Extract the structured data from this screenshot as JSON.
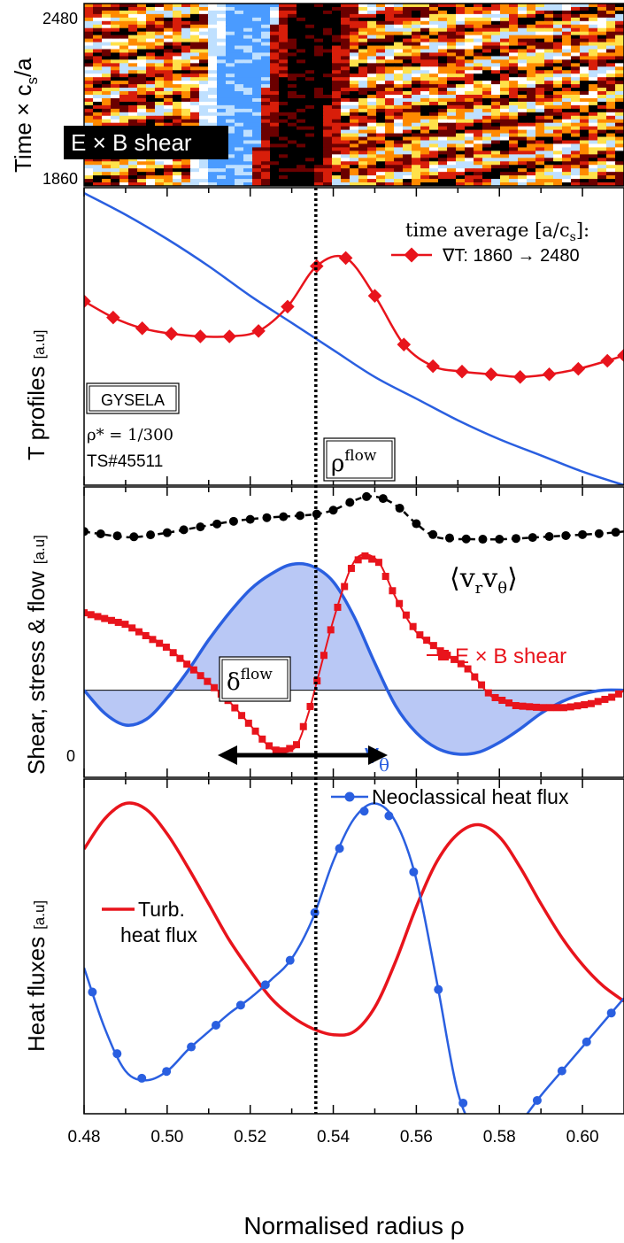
{
  "colors": {
    "red": "#e8141c",
    "blue": "#2a5fe0",
    "black": "#000000",
    "fill_blue": "#b9c8f5",
    "heat": [
      "#000000",
      "#6b0000",
      "#d81e0a",
      "#ff8a00",
      "#ffe14a",
      "#ffffff",
      "#bfe0ff",
      "#4a9bff"
    ]
  },
  "chart_data": [
    {
      "type": "heatmap",
      "ylabel_main": "Time × c",
      "ylabel_sub": "s",
      "ylabel_tail": "/a",
      "y_ticks": [
        "2480",
        "1860"
      ],
      "ylim": [
        1860,
        2480
      ],
      "xlim": [
        0.48,
        0.61
      ],
      "annotation": "E × B shear"
    },
    {
      "type": "line",
      "ylabel": "T profiles",
      "yunit": "[a.u]",
      "legend_title": "time average [a/c",
      "legend_title_sub": "s",
      "legend_title_tail": "]:",
      "legend_entry": "∇T: 1860 → 2480",
      "box_label": "GYSELA",
      "rho_star": "ρ* = 1/300",
      "ts_label": "TS#45511",
      "flow_label": "ρ",
      "flow_sup": "flow",
      "xlim": [
        0.48,
        0.61
      ],
      "series": [
        {
          "name": "∇T: 1860 → 2480",
          "x": [
            0.48,
            0.487,
            0.494,
            0.501,
            0.508,
            0.515,
            0.522,
            0.529,
            0.536,
            0.543,
            0.55,
            0.557,
            0.564,
            0.571,
            0.578,
            0.585,
            0.592,
            0.599,
            0.606,
            0.61
          ],
          "y": [
            0.58,
            0.52,
            0.48,
            0.46,
            0.45,
            0.45,
            0.47,
            0.56,
            0.71,
            0.74,
            0.6,
            0.42,
            0.34,
            0.32,
            0.31,
            0.3,
            0.31,
            0.33,
            0.36,
            0.38
          ]
        },
        {
          "x": [
            0.48,
            0.49,
            0.5,
            0.51,
            0.52,
            0.53,
            0.54,
            0.55,
            0.56,
            0.57,
            0.58,
            0.59,
            0.6,
            0.61
          ],
          "y": [
            0.98,
            0.9,
            0.81,
            0.71,
            0.6,
            0.5,
            0.4,
            0.3,
            0.22,
            0.14,
            0.07,
            0.01,
            -0.05,
            -0.1
          ]
        }
      ]
    },
    {
      "type": "line",
      "ylabel": "Shear, stress & flow",
      "yunit": "[a.u]",
      "zero_label": "0",
      "stress_label_main": "v",
      "stress_label_s1": "r",
      "stress_label_s2": "θ",
      "shear_label": "E × B shear",
      "vtheta_label": "v",
      "vtheta_sub": "θ",
      "delta_label": "δ",
      "delta_sup": "flow",
      "xlim": [
        0.48,
        0.61
      ],
      "series": [
        {
          "x": [
            0.48,
            0.483,
            0.491,
            0.499,
            0.507,
            0.515,
            0.523,
            0.531,
            0.536,
            0.54,
            0.544,
            0.548,
            0.552,
            0.556,
            0.56,
            0.565,
            0.573,
            0.581,
            0.589,
            0.597,
            0.605,
            0.61
          ],
          "y": [
            0.82,
            0.81,
            0.79,
            0.81,
            0.84,
            0.87,
            0.89,
            0.9,
            0.91,
            0.93,
            0.97,
            1.0,
            0.99,
            0.94,
            0.86,
            0.79,
            0.78,
            0.78,
            0.79,
            0.8,
            0.81,
            0.82
          ]
        },
        {
          "name": "E × B shear",
          "x": [
            0.48,
            0.49,
            0.5,
            0.51,
            0.515,
            0.52,
            0.524,
            0.527,
            0.531,
            0.534,
            0.536,
            0.54,
            0.544,
            0.547,
            0.551,
            0.555,
            0.56,
            0.566,
            0.572,
            0.578,
            0.584,
            0.59,
            0.596,
            0.602,
            0.608,
            0.61
          ],
          "y": [
            0.4,
            0.34,
            0.22,
            0.04,
            -0.06,
            -0.18,
            -0.28,
            -0.32,
            -0.29,
            -0.12,
            0.04,
            0.36,
            0.62,
            0.7,
            0.66,
            0.48,
            0.3,
            0.2,
            0.12,
            -0.03,
            -0.08,
            -0.09,
            -0.09,
            -0.07,
            -0.03,
            0.0
          ]
        },
        {
          "x": [
            0.48,
            0.485,
            0.49,
            0.495,
            0.5,
            0.505,
            0.51,
            0.515,
            0.52,
            0.525,
            0.53,
            0.535,
            0.54,
            0.545,
            0.55,
            0.555,
            0.56,
            0.565,
            0.57,
            0.575,
            0.58,
            0.585,
            0.59,
            0.595,
            0.6,
            0.605,
            0.61
          ],
          "y": [
            0.0,
            -0.12,
            -0.18,
            -0.15,
            -0.04,
            0.1,
            0.26,
            0.4,
            0.52,
            0.6,
            0.65,
            0.64,
            0.56,
            0.38,
            0.14,
            -0.08,
            -0.22,
            -0.3,
            -0.33,
            -0.32,
            -0.27,
            -0.2,
            -0.12,
            -0.06,
            -0.02,
            0.0,
            0.0
          ]
        }
      ]
    },
    {
      "type": "line",
      "ylabel": "Heat fluxes",
      "yunit": "[a.u]",
      "xlabel": "Normalised radius  ρ",
      "x_ticks": [
        "0.48",
        "0.50",
        "0.52",
        "0.54",
        "0.56",
        "0.58",
        "0.60"
      ],
      "xlim": [
        0.48,
        0.61
      ],
      "neo_label": "Neoclassical heat flux",
      "turb_label_1": "Turb.",
      "turb_label_2": "heat flux",
      "series": [
        {
          "name": "Turb. heat flux",
          "x": [
            0.48,
            0.485,
            0.49,
            0.495,
            0.5,
            0.505,
            0.51,
            0.515,
            0.52,
            0.525,
            0.53,
            0.535,
            0.54,
            0.545,
            0.55,
            0.555,
            0.56,
            0.565,
            0.57,
            0.575,
            0.58,
            0.585,
            0.59,
            0.595,
            0.6,
            0.605,
            0.61
          ],
          "y": [
            0.82,
            0.92,
            0.97,
            0.95,
            0.87,
            0.76,
            0.64,
            0.52,
            0.42,
            0.33,
            0.27,
            0.23,
            0.21,
            0.22,
            0.3,
            0.45,
            0.63,
            0.78,
            0.87,
            0.9,
            0.86,
            0.76,
            0.64,
            0.53,
            0.44,
            0.37,
            0.32
          ]
        },
        {
          "name": "Neoclassical heat flux",
          "x": [
            0.48,
            0.485,
            0.49,
            0.495,
            0.5,
            0.505,
            0.51,
            0.515,
            0.52,
            0.525,
            0.53,
            0.535,
            0.54,
            0.545,
            0.55,
            0.555,
            0.56,
            0.565,
            0.57,
            0.575,
            0.58,
            0.585,
            0.59,
            0.595,
            0.6,
            0.605,
            0.61
          ],
          "y": [
            0.43,
            0.23,
            0.09,
            0.06,
            0.09,
            0.16,
            0.22,
            0.28,
            0.33,
            0.39,
            0.46,
            0.59,
            0.78,
            0.92,
            0.97,
            0.91,
            0.72,
            0.38,
            0.02,
            -0.12,
            -0.15,
            -0.08,
            0.01,
            0.09,
            0.17,
            0.25,
            0.33
          ]
        }
      ]
    }
  ]
}
